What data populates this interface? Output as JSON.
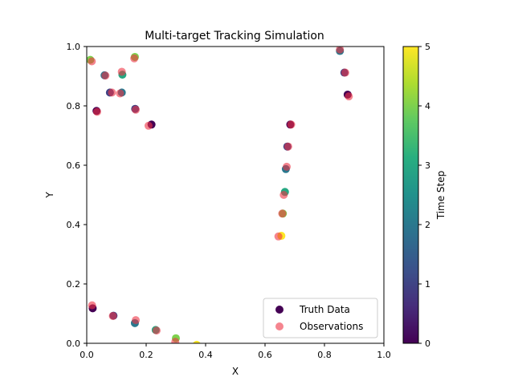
{
  "chart_data": {
    "type": "scatter",
    "title": "Multi-target Tracking Simulation",
    "xlabel": "X",
    "ylabel": "Y",
    "xlim": [
      0,
      1
    ],
    "ylim": [
      0,
      1
    ],
    "xticks": [
      "0.0",
      "0.2",
      "0.4",
      "0.6",
      "0.8",
      "1.0"
    ],
    "yticks": [
      "0.0",
      "0.2",
      "0.4",
      "0.6",
      "0.8",
      "1.0"
    ],
    "grid": false,
    "legend_position": "lower-right",
    "legend": [
      {
        "label": "Truth Data",
        "color": "#440154"
      },
      {
        "label": "Observations",
        "color": "#ee5060"
      }
    ],
    "colorbar": {
      "label": "Time Step",
      "colormap": "viridis",
      "range": [
        0,
        5
      ],
      "ticks": [
        "0",
        "1",
        "2",
        "3",
        "4",
        "5"
      ]
    },
    "observation_color": "#ee3344",
    "series": [
      {
        "name": "Truth Data",
        "points": [
          {
            "x": 0.685,
            "y": 0.737,
            "t": 0
          },
          {
            "x": 0.675,
            "y": 0.663,
            "t": 1
          },
          {
            "x": 0.67,
            "y": 0.587,
            "t": 2
          },
          {
            "x": 0.667,
            "y": 0.51,
            "t": 3
          },
          {
            "x": 0.66,
            "y": 0.437,
            "t": 4
          },
          {
            "x": 0.655,
            "y": 0.362,
            "t": 5
          },
          {
            "x": 0.218,
            "y": 0.737,
            "t": 0
          },
          {
            "x": 0.163,
            "y": 0.79,
            "t": 1
          },
          {
            "x": 0.118,
            "y": 0.845,
            "t": 2
          },
          {
            "x": 0.12,
            "y": 0.905,
            "t": 3
          },
          {
            "x": 0.162,
            "y": 0.965,
            "t": 4
          },
          {
            "x": 0.02,
            "y": 0.118,
            "t": 0
          },
          {
            "x": 0.09,
            "y": 0.093,
            "t": 1
          },
          {
            "x": 0.162,
            "y": 0.068,
            "t": 2
          },
          {
            "x": 0.232,
            "y": 0.045,
            "t": 3
          },
          {
            "x": 0.3,
            "y": 0.017,
            "t": 4
          },
          {
            "x": 0.37,
            "y": -0.005,
            "t": 5
          },
          {
            "x": 0.878,
            "y": 0.838,
            "t": 0
          },
          {
            "x": 0.867,
            "y": 0.912,
            "t": 1
          },
          {
            "x": 0.852,
            "y": 0.985,
            "t": 2
          },
          {
            "x": 0.033,
            "y": 0.783,
            "t": 0
          },
          {
            "x": 0.078,
            "y": 0.845,
            "t": 1
          },
          {
            "x": 0.06,
            "y": 0.903,
            "t": 2
          },
          {
            "x": 0.012,
            "y": 0.955,
            "t": 4
          }
        ]
      },
      {
        "name": "Observations",
        "points": [
          {
            "x": 0.688,
            "y": 0.737
          },
          {
            "x": 0.678,
            "y": 0.663
          },
          {
            "x": 0.673,
            "y": 0.595
          },
          {
            "x": 0.663,
            "y": 0.5
          },
          {
            "x": 0.658,
            "y": 0.437
          },
          {
            "x": 0.645,
            "y": 0.36
          },
          {
            "x": 0.208,
            "y": 0.733
          },
          {
            "x": 0.165,
            "y": 0.787
          },
          {
            "x": 0.112,
            "y": 0.842
          },
          {
            "x": 0.118,
            "y": 0.915
          },
          {
            "x": 0.16,
            "y": 0.96
          },
          {
            "x": 0.018,
            "y": 0.128
          },
          {
            "x": 0.088,
            "y": 0.092
          },
          {
            "x": 0.165,
            "y": 0.078
          },
          {
            "x": 0.235,
            "y": 0.043
          },
          {
            "x": 0.298,
            "y": 0.005
          },
          {
            "x": 0.882,
            "y": 0.832
          },
          {
            "x": 0.87,
            "y": 0.912
          },
          {
            "x": 0.852,
            "y": 0.99
          },
          {
            "x": 0.035,
            "y": 0.78
          },
          {
            "x": 0.085,
            "y": 0.845
          },
          {
            "x": 0.063,
            "y": 0.902
          },
          {
            "x": 0.017,
            "y": 0.95
          }
        ]
      }
    ]
  }
}
